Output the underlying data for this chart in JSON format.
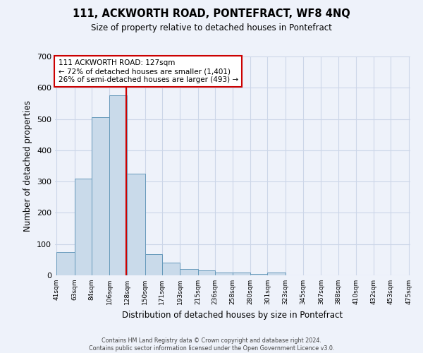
{
  "title": "111, ACKWORTH ROAD, PONTEFRACT, WF8 4NQ",
  "subtitle": "Size of property relative to detached houses in Pontefract",
  "xlabel": "Distribution of detached houses by size in Pontefract",
  "ylabel": "Number of detached properties",
  "bar_edges": [
    41,
    63,
    84,
    106,
    128,
    150,
    171,
    193,
    215,
    236,
    258,
    280,
    301,
    323,
    345,
    367,
    388,
    410,
    432,
    453,
    475
  ],
  "bar_heights": [
    75,
    310,
    505,
    575,
    325,
    68,
    40,
    20,
    15,
    10,
    10,
    5,
    8,
    0,
    0,
    0,
    0,
    0,
    0,
    0
  ],
  "tick_labels": [
    "41sqm",
    "63sqm",
    "84sqm",
    "106sqm",
    "128sqm",
    "150sqm",
    "171sqm",
    "193sqm",
    "215sqm",
    "236sqm",
    "258sqm",
    "280sqm",
    "301sqm",
    "323sqm",
    "345sqm",
    "367sqm",
    "388sqm",
    "410sqm",
    "432sqm",
    "453sqm",
    "475sqm"
  ],
  "property_size": 127,
  "bar_color": "#c9daea",
  "bar_edge_color": "#6699bb",
  "vline_color": "#cc0000",
  "annotation_line1": "111 ACKWORTH ROAD: 127sqm",
  "annotation_line2": "← 72% of detached houses are smaller (1,401)",
  "annotation_line3": "26% of semi-detached houses are larger (493) →",
  "annotation_box_color": "#ffffff",
  "annotation_box_edge": "#cc0000",
  "footer_text": "Contains HM Land Registry data © Crown copyright and database right 2024.\nContains public sector information licensed under the Open Government Licence v3.0.",
  "ylim": [
    0,
    700
  ],
  "yticks": [
    0,
    100,
    200,
    300,
    400,
    500,
    600,
    700
  ],
  "grid_color": "#ccd6e8",
  "bg_color": "#eef2fa"
}
